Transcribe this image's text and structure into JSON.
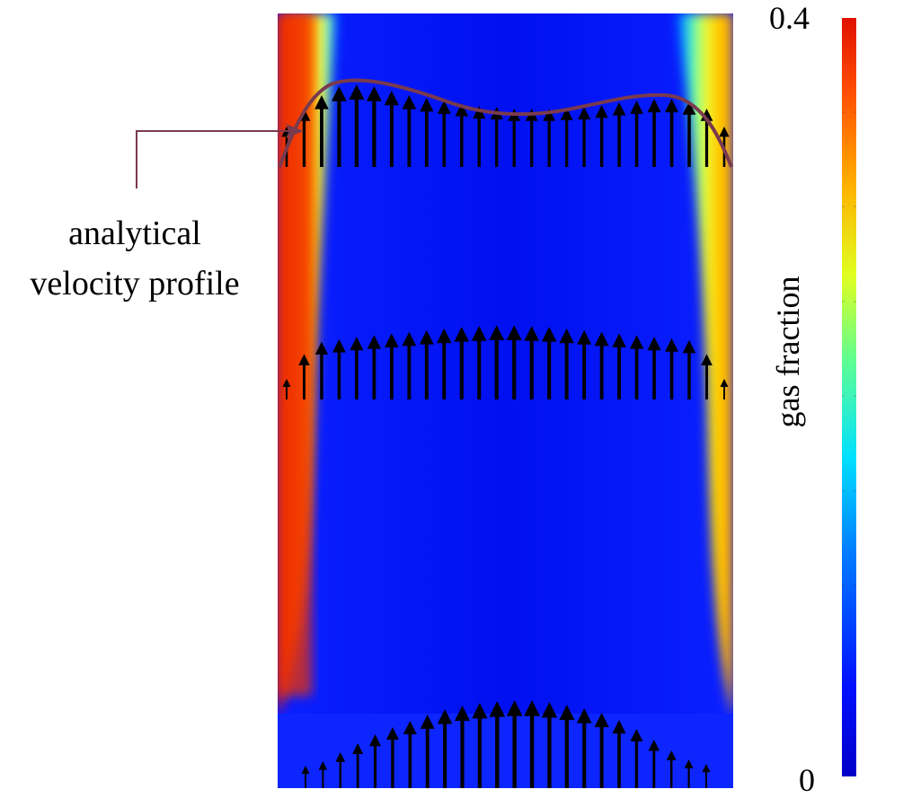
{
  "annotation": {
    "line1": "analytical",
    "line2": "velocity profile"
  },
  "colorbar": {
    "max_label": "0.4",
    "min_label": "0",
    "title": "gas fraction"
  },
  "colors": {
    "curve": "#7a3a4e",
    "arrows": "#000000",
    "colormap": [
      "#0000c8",
      "#0010ff",
      "#0080ff",
      "#00e0ff",
      "#60ff90",
      "#e0ff20",
      "#ffb000",
      "#ff5000",
      "#e01000"
    ]
  },
  "arrow_rows": [
    {
      "name": "top",
      "magnitudes": [
        0.45,
        0.65,
        0.8,
        0.9,
        0.92,
        0.9,
        0.85,
        0.8,
        0.77,
        0.74,
        0.71,
        0.68,
        0.67,
        0.65,
        0.65,
        0.65,
        0.66,
        0.67,
        0.69,
        0.72,
        0.74,
        0.76,
        0.76,
        0.73,
        0.65,
        0.45
      ]
    },
    {
      "name": "middle",
      "magnitudes": [
        0.25,
        0.55,
        0.7,
        0.73,
        0.76,
        0.78,
        0.8,
        0.82,
        0.84,
        0.86,
        0.88,
        0.89,
        0.9,
        0.9,
        0.89,
        0.88,
        0.86,
        0.84,
        0.82,
        0.8,
        0.78,
        0.76,
        0.74,
        0.72,
        0.55,
        0.25
      ]
    },
    {
      "name": "bottom",
      "magnitudes": [
        0.25,
        0.3,
        0.4,
        0.5,
        0.6,
        0.68,
        0.75,
        0.82,
        0.88,
        0.92,
        0.95,
        0.97,
        0.98,
        0.98,
        0.96,
        0.93,
        0.89,
        0.84,
        0.76,
        0.66,
        0.54,
        0.42,
        0.32,
        0.27
      ]
    }
  ]
}
